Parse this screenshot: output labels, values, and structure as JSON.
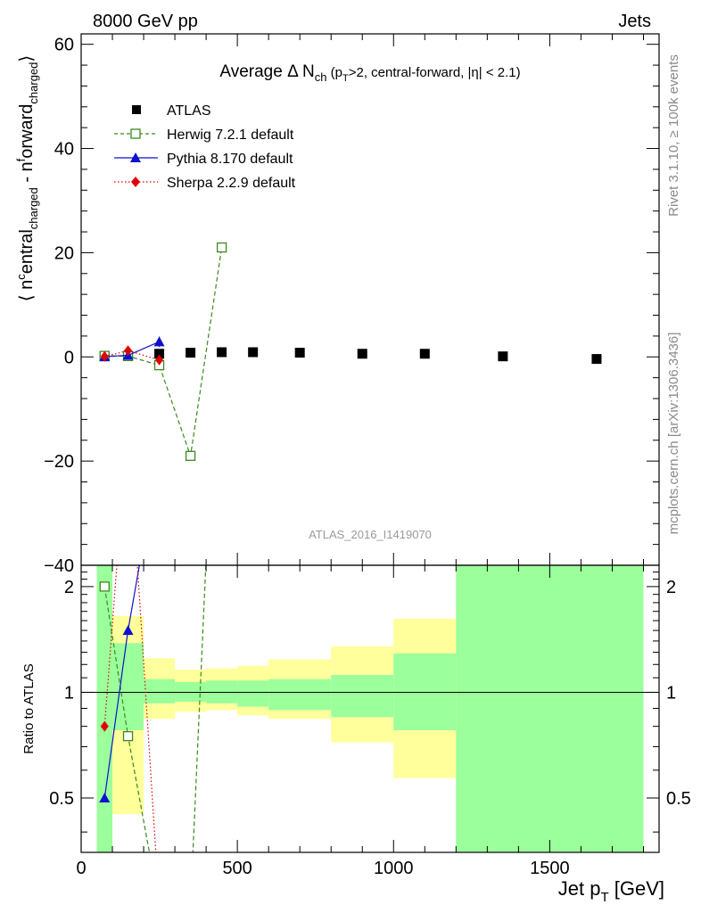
{
  "header": {
    "left": "8000 GeV pp",
    "right": "Jets",
    "title_main": "Average",
    "title_delta": "Δ N",
    "title_sub": "ch",
    "title_rest_1": " (p",
    "title_rest_sub": "T",
    "title_rest_2": ">2, central-forward, |η| < 2.1)"
  },
  "side_labels": {
    "rivet": "Rivet 3.1.10, ≥ 100k events",
    "mcplots": "mcplots.cern.ch [arXiv:1306.3436]"
  },
  "watermark": "ATLAS_2016_I1419070",
  "axes": {
    "ylabel_main": "⟨ n^central_charged - n^forward_charged ⟩",
    "ylabel_ratio": "Ratio to ATLAS",
    "xlabel": "Jet p_T [GeV]",
    "xlabel_text": "Jet p",
    "xlabel_sub": "T",
    "xlabel_unit": " [GeV]",
    "ylabel_parts": [
      "⟨ n",
      "c",
      "entral",
      "charged",
      " - n",
      "f",
      "orward",
      "charged",
      "⟩"
    ]
  },
  "colors": {
    "atlas": "#000000",
    "herwig": "#3a8a1e",
    "pythia": "#1010d0",
    "sherpa": "#e00000",
    "band_inner": "#9bff9b",
    "band_outer": "#ffff9b"
  },
  "chart_data": {
    "type": "scatter",
    "xlim": [
      0,
      1850
    ],
    "ylim": [
      -40,
      62
    ],
    "ratio_ylim": [
      0.35,
      2.3
    ],
    "x_ticks": [
      0,
      500,
      1000,
      1500
    ],
    "y_ticks": [
      -40,
      -20,
      0,
      20,
      40,
      60
    ],
    "ratio_ticks": [
      0.5,
      1,
      2
    ],
    "legend_placement": "top-left",
    "series": [
      {
        "name": "ATLAS",
        "style": "data",
        "x": [
          75,
          150,
          250,
          350,
          450,
          550,
          700,
          900,
          1100,
          1350,
          1650
        ],
        "y": [
          0.1,
          0.2,
          0.6,
          0.8,
          0.9,
          0.9,
          0.8,
          0.6,
          0.6,
          0.1,
          -0.4
        ],
        "xerr": [
          25,
          50,
          50,
          50,
          50,
          50,
          100,
          100,
          100,
          150,
          150
        ]
      },
      {
        "name": "Herwig 7.2.1 default",
        "style": "dashed-open-square",
        "x": [
          75,
          150,
          250,
          350,
          450
        ],
        "y": [
          0.2,
          0.15,
          -1.6,
          -19.0,
          21.0
        ]
      },
      {
        "name": "Pythia 8.170 default",
        "style": "solid-triangle",
        "x": [
          75,
          150,
          250
        ],
        "y": [
          0.05,
          0.3,
          2.9
        ],
        "yerr": [
          0.2,
          0.4,
          1.0
        ]
      },
      {
        "name": "Sherpa 2.2.9 default",
        "style": "dotted-diamond",
        "x": [
          75,
          150,
          250
        ],
        "y": [
          0.08,
          1.2,
          -0.6
        ],
        "yerr": [
          0.2,
          0.5,
          0.6
        ]
      }
    ],
    "ratio_bands": [
      {
        "x0": 50,
        "x1": 100,
        "inner": [
          0.35,
          2.3
        ],
        "outer": [
          0.35,
          2.3
        ]
      },
      {
        "x0": 100,
        "x1": 200,
        "inner": [
          0.78,
          1.38
        ],
        "outer": [
          0.45,
          1.65
        ]
      },
      {
        "x0": 200,
        "x1": 300,
        "inner": [
          0.93,
          1.09
        ],
        "outer": [
          0.84,
          1.25
        ]
      },
      {
        "x0": 300,
        "x1": 400,
        "inner": [
          0.94,
          1.07
        ],
        "outer": [
          0.88,
          1.16
        ]
      },
      {
        "x0": 400,
        "x1": 500,
        "inner": [
          0.93,
          1.08
        ],
        "outer": [
          0.89,
          1.17
        ]
      },
      {
        "x0": 500,
        "x1": 600,
        "inner": [
          0.91,
          1.08
        ],
        "outer": [
          0.86,
          1.19
        ]
      },
      {
        "x0": 600,
        "x1": 800,
        "inner": [
          0.89,
          1.09
        ],
        "outer": [
          0.84,
          1.24
        ]
      },
      {
        "x0": 800,
        "x1": 1000,
        "inner": [
          0.85,
          1.12
        ],
        "outer": [
          0.72,
          1.35
        ]
      },
      {
        "x0": 1000,
        "x1": 1200,
        "inner": [
          0.78,
          1.29
        ],
        "outer": [
          0.57,
          1.62
        ]
      },
      {
        "x0": 1200,
        "x1": 1800,
        "inner": [
          0.35,
          2.3
        ],
        "outer": [
          0.35,
          2.3
        ]
      }
    ]
  }
}
